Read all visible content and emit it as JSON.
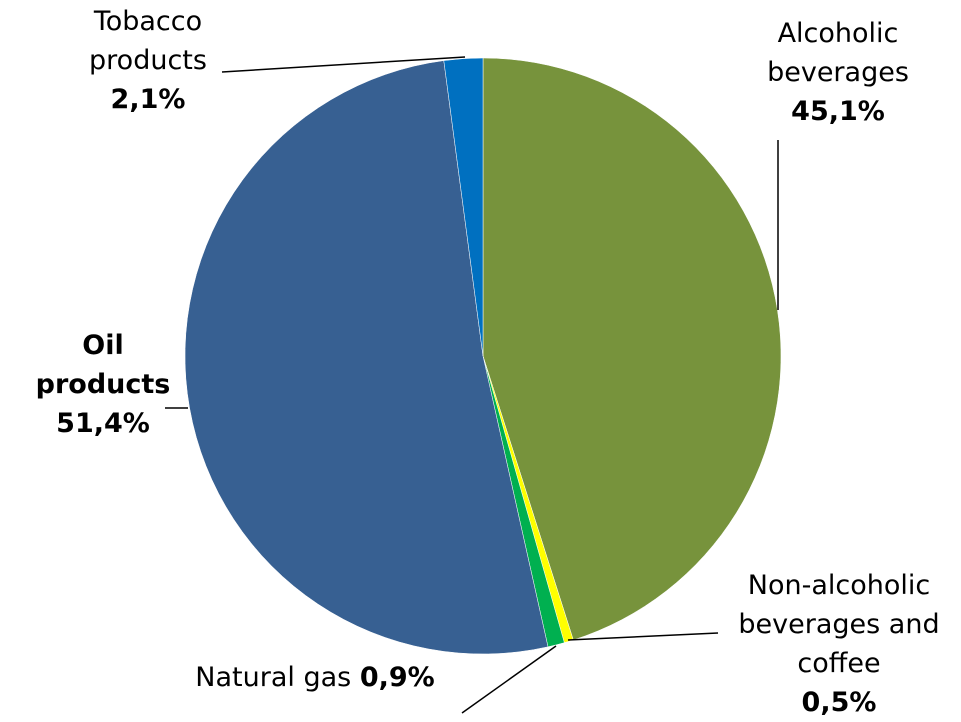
{
  "chart_data": {
    "type": "pie",
    "categories": [
      "Alcoholic beverages",
      "Non-alcoholic beverages and coffee",
      "Natural gas",
      "Oil products",
      "Tobacco products"
    ],
    "values": [
      45.1,
      0.5,
      0.9,
      51.4,
      2.1
    ],
    "value_labels": [
      "45,1%",
      "0,5%",
      "0,9%",
      "51,4%",
      "2,1%"
    ],
    "colors": [
      "#77933c",
      "#ffff00",
      "#00b050",
      "#376092",
      "#0070c0"
    ]
  }
}
